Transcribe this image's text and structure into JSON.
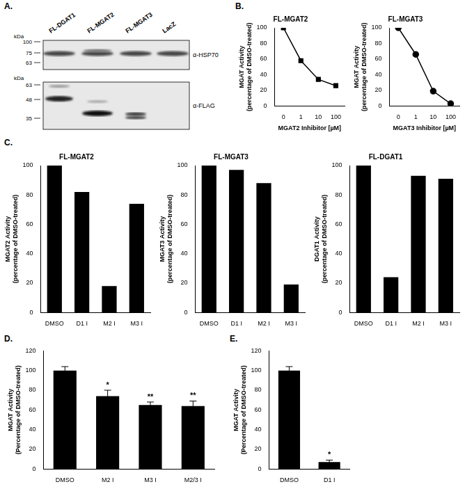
{
  "panel_labels": [
    "A.",
    "B.",
    "C.",
    "D.",
    "E."
  ],
  "blot": {
    "lanes": [
      "FL-DGAT1",
      "FL-MGAT2",
      "FL-MGAT3",
      "LacZ"
    ],
    "kda_label": "kDa",
    "panels": [
      {
        "antibody": "α-HSP70",
        "markers": [
          100,
          75,
          63
        ]
      },
      {
        "antibody": "α-FLAG",
        "markers": [
          63,
          48,
          35
        ]
      }
    ]
  },
  "chart_data": [
    {
      "type": "line",
      "title": "FL-MGAT2",
      "categories": [
        "0",
        "1",
        "10",
        "100"
      ],
      "values": [
        100,
        58,
        34,
        26
      ],
      "color": "#000000",
      "marker": "square",
      "x_label": "MGAT2 Inhibitor [µM]",
      "y_label": [
        "MGAT Activity",
        "(percentage of DMSO-treated)"
      ],
      "ylim": [
        0,
        100
      ],
      "yticks": [
        0,
        20,
        40,
        60,
        80,
        100
      ],
      "grid": false
    },
    {
      "type": "line",
      "title": "FL-MGAT3",
      "categories": [
        "0",
        "1",
        "10",
        "100"
      ],
      "values": [
        100,
        66,
        19,
        3
      ],
      "color": "#000000",
      "marker": "circle",
      "x_label": "MGAT3 Inhibitor [µM]",
      "y_label": [
        "MGAT Activity",
        "(percentage of DMSO-treated)"
      ],
      "ylim": [
        0,
        100
      ],
      "yticks": [
        0,
        20,
        40,
        60,
        80,
        100
      ],
      "grid": false
    },
    {
      "type": "bar",
      "title": "FL-MGAT2",
      "categories": [
        "DMSO",
        "D1 I",
        "M2 I",
        "M3 I"
      ],
      "values": [
        100,
        82,
        18,
        74
      ],
      "color": "#000000",
      "y_label": [
        "MGAT2 Activity",
        "(percentage of DMSO-treated)"
      ],
      "ylim": [
        0,
        100
      ],
      "yticks": [
        0,
        20,
        40,
        60,
        80,
        100
      ],
      "grid": false
    },
    {
      "type": "bar",
      "title": "FL-MGAT3",
      "categories": [
        "DMSO",
        "D1 I",
        "M2 I",
        "M3 I"
      ],
      "values": [
        100,
        97,
        88,
        19
      ],
      "color": "#000000",
      "y_label": [
        "MGAT3 Activity",
        "(percentage of DMSO-treated)"
      ],
      "ylim": [
        0,
        100
      ],
      "yticks": [
        0,
        20,
        40,
        60,
        80,
        100
      ],
      "grid": false
    },
    {
      "type": "bar",
      "title": "FL-DGAT1",
      "categories": [
        "DMSO",
        "D1 I",
        "M2 I",
        "M3 I"
      ],
      "values": [
        100,
        24,
        93,
        91
      ],
      "color": "#000000",
      "y_label": [
        "DGAT1 Activity",
        "(percentage of DMSO-treated)"
      ],
      "ylim": [
        0,
        100
      ],
      "yticks": [
        0,
        20,
        40,
        60,
        80,
        100
      ],
      "grid": false
    },
    {
      "type": "bar",
      "categories": [
        "DMSO",
        "M2 I",
        "M3 I",
        "M2/3 I"
      ],
      "values": [
        100,
        74,
        65,
        64
      ],
      "errors": [
        4,
        6,
        3,
        5
      ],
      "annotations": [
        null,
        "*",
        "**",
        "**"
      ],
      "color": "#000000",
      "y_label": [
        "MGAT Activity",
        "(Percentage of DMSO-treated)"
      ],
      "ylim": [
        0,
        120
      ],
      "yticks": [
        0,
        20,
        40,
        60,
        80,
        100,
        120
      ],
      "grid": false
    },
    {
      "type": "bar",
      "categories": [
        "DMSO",
        "D1 I"
      ],
      "values": [
        100,
        7
      ],
      "errors": [
        4,
        2
      ],
      "annotations": [
        null,
        "*"
      ],
      "color": "#000000",
      "y_label": [
        "MGAT Activity",
        "(Percentage of DMSO-treated)"
      ],
      "ylim": [
        0,
        120
      ],
      "yticks": [
        0,
        20,
        40,
        60,
        80,
        100,
        120
      ],
      "grid": false
    }
  ]
}
